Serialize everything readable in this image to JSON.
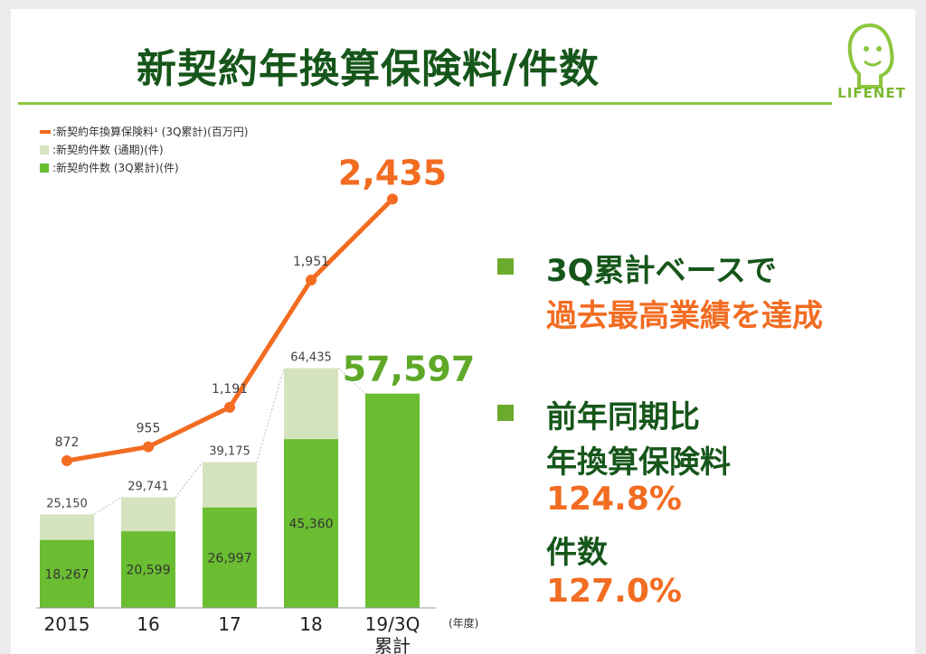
{
  "title": "新契約年換算保険料/件数",
  "logo": {
    "text": "LIFENET"
  },
  "legend": [
    {
      "label": ":新契約年換算保険料¹ (3Q累計)(百万円)",
      "kind": "line",
      "color": "#f26c21"
    },
    {
      "label": ":新契約件数 (通期)(件)",
      "kind": "box",
      "color": "#d6e3bf"
    },
    {
      "label": ":新契約件数 (3Q累計)(件)",
      "kind": "box",
      "color": "#6bbd31"
    }
  ],
  "chart_data": {
    "type": "bar",
    "categories": [
      "2015",
      "16",
      "17",
      "18",
      "19/3Q累計"
    ],
    "x_unit": "(年度)",
    "series": [
      {
        "name": "新契約件数 (3Q累計)(件)",
        "values": [
          18267,
          20599,
          26997,
          45360,
          57597
        ],
        "labels": [
          "18,267",
          "20,599",
          "26,997",
          "45,360",
          "57,597"
        ],
        "color": "#6bbd31"
      },
      {
        "name": "新契約件数 (通期)(件)",
        "values": [
          25150,
          29741,
          39175,
          64435,
          null
        ],
        "labels": [
          "25,150",
          "29,741",
          "39,175",
          "64,435",
          ""
        ],
        "color": "#d6e3bf"
      },
      {
        "name": "新契約年換算保険料 (3Q累計)(百万円)",
        "type": "line",
        "values": [
          872,
          955,
          1191,
          1951,
          2435
        ],
        "labels": [
          "872",
          "955",
          "1,191",
          "1,951",
          "2,435"
        ],
        "color": "#f26c21"
      }
    ],
    "grid": false
  },
  "highlight": {
    "bullet1_line1": "3Q累計ベースで",
    "bullet1_line2": "過去最高業績を達成",
    "bullet2_line1": "前年同期比",
    "bullet2_line2": "年換算保険料",
    "premium_ratio": "124.8%",
    "bullet2_line3": "件数",
    "count_ratio": "127.0%"
  },
  "colors": {
    "title": "#16561a",
    "accent_green": "#6bab2c",
    "accent_orange": "#f26c21"
  }
}
